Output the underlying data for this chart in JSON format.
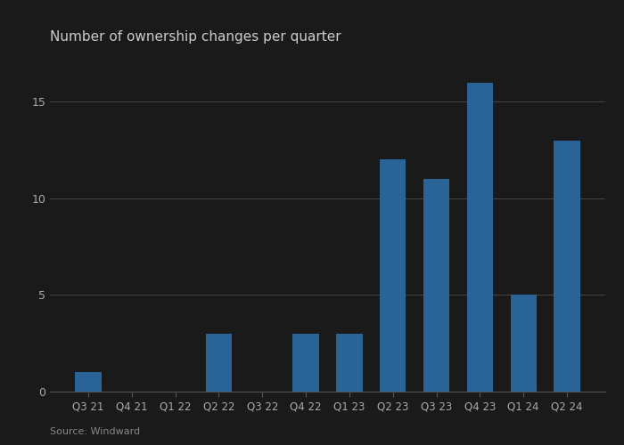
{
  "categories": [
    "Q3 21",
    "Q4 21",
    "Q1 22",
    "Q2 22",
    "Q3 22",
    "Q4 22",
    "Q1 23",
    "Q2 23",
    "Q3 23",
    "Q4 23",
    "Q1 24",
    "Q2 24"
  ],
  "values": [
    1,
    0,
    0,
    3,
    0,
    3,
    3,
    12,
    11,
    16,
    5,
    13
  ],
  "bar_color": "#2a6496",
  "title": "Number of ownership changes per quarter",
  "title_fontsize": 11,
  "yticks": [
    0,
    5,
    10,
    15
  ],
  "ylim": [
    0,
    17.5
  ],
  "source_text": "Source: Windward",
  "background_color": "#1a1a1a",
  "plot_bg_color": "#1a1a1a",
  "grid_color": "#444444",
  "tick_label_color": "#aaaaaa",
  "title_color": "#cccccc",
  "source_color": "#888888"
}
